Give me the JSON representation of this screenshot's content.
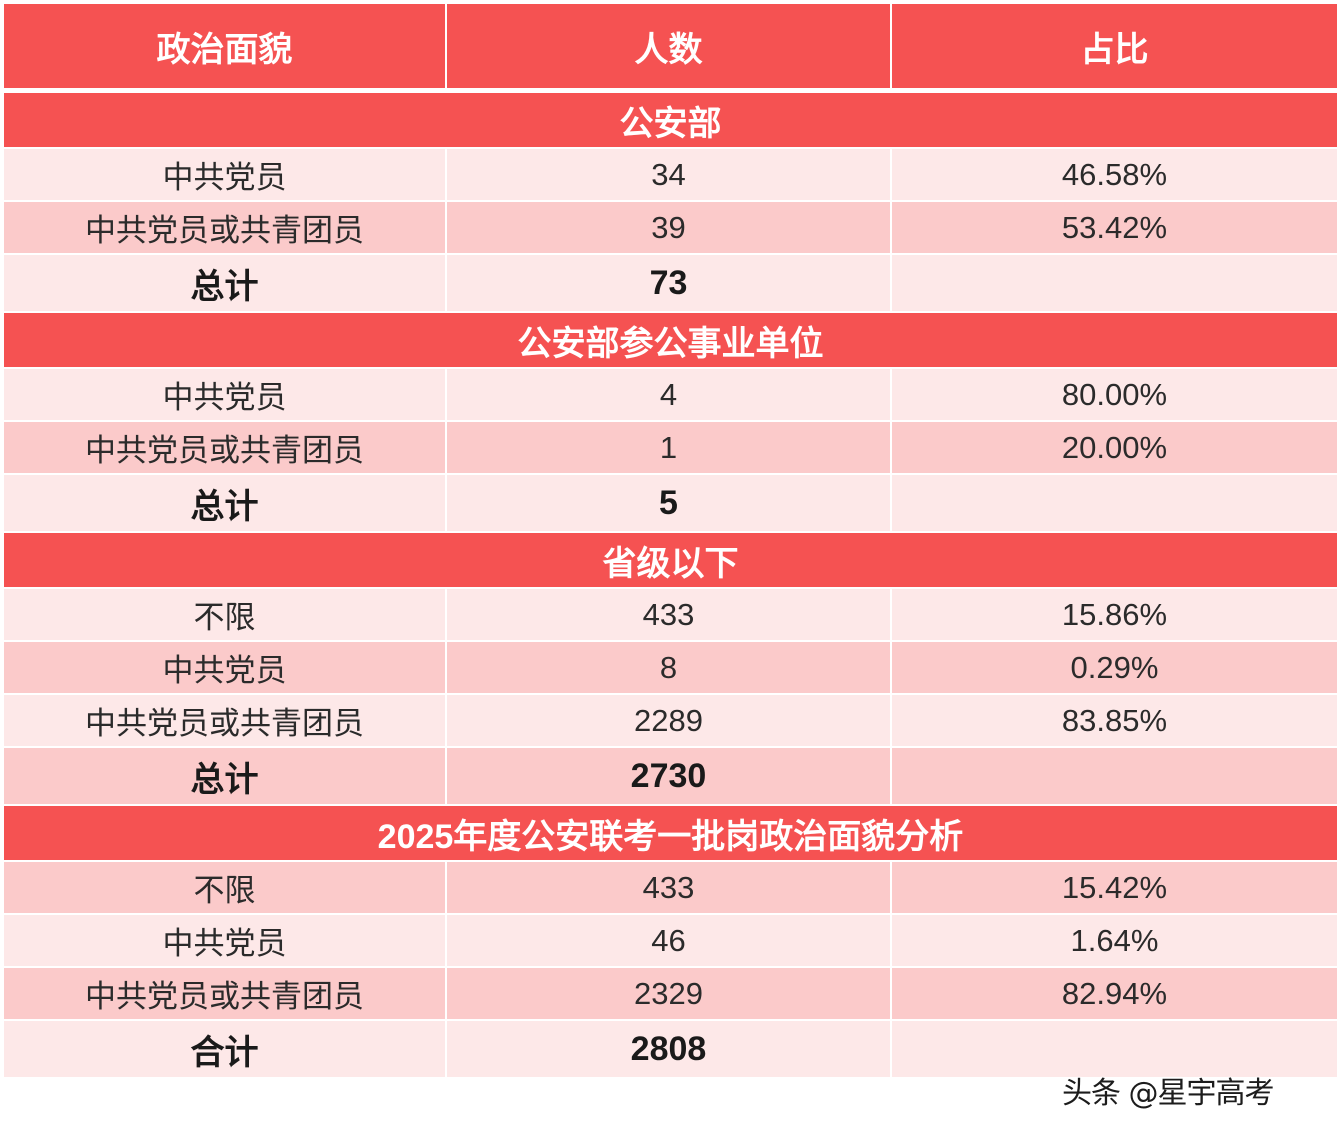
{
  "table": {
    "headers": [
      "政治面貌",
      "人数",
      "占比"
    ],
    "sections": [
      {
        "title": "公安部",
        "rows": [
          {
            "label": "中共党员",
            "count": "34",
            "pct": "46.58%"
          },
          {
            "label": "中共党员或共青团员",
            "count": "39",
            "pct": "53.42%"
          }
        ],
        "total": {
          "label": "总计",
          "count": "73",
          "pct": ""
        }
      },
      {
        "title": "公安部参公事业单位",
        "rows": [
          {
            "label": "中共党员",
            "count": "4",
            "pct": "80.00%"
          },
          {
            "label": "中共党员或共青团员",
            "count": "1",
            "pct": "20.00%"
          }
        ],
        "total": {
          "label": "总计",
          "count": "5",
          "pct": ""
        }
      },
      {
        "title": "省级以下",
        "rows": [
          {
            "label": "不限",
            "count": "433",
            "pct": "15.86%"
          },
          {
            "label": "中共党员",
            "count": "8",
            "pct": "0.29%"
          },
          {
            "label": "中共党员或共青团员",
            "count": "2289",
            "pct": "83.85%"
          }
        ],
        "total": {
          "label": "总计",
          "count": "2730",
          "pct": ""
        }
      },
      {
        "title": "2025年度公安联考一批岗政治面貌分析",
        "rows": [
          {
            "label": "不限",
            "count": "433",
            "pct": "15.42%"
          },
          {
            "label": "中共党员",
            "count": "46",
            "pct": "1.64%"
          },
          {
            "label": "中共党员或共青团员",
            "count": "2329",
            "pct": "82.94%"
          }
        ],
        "total": {
          "label": "合计",
          "count": "2808",
          "pct": ""
        }
      }
    ]
  },
  "watermark": "头条 @星宇高考",
  "colors": {
    "header_bg": "#f55252",
    "row_light": "#fde8e8",
    "row_dark": "#fbcaca",
    "header_text": "#ffffff"
  }
}
